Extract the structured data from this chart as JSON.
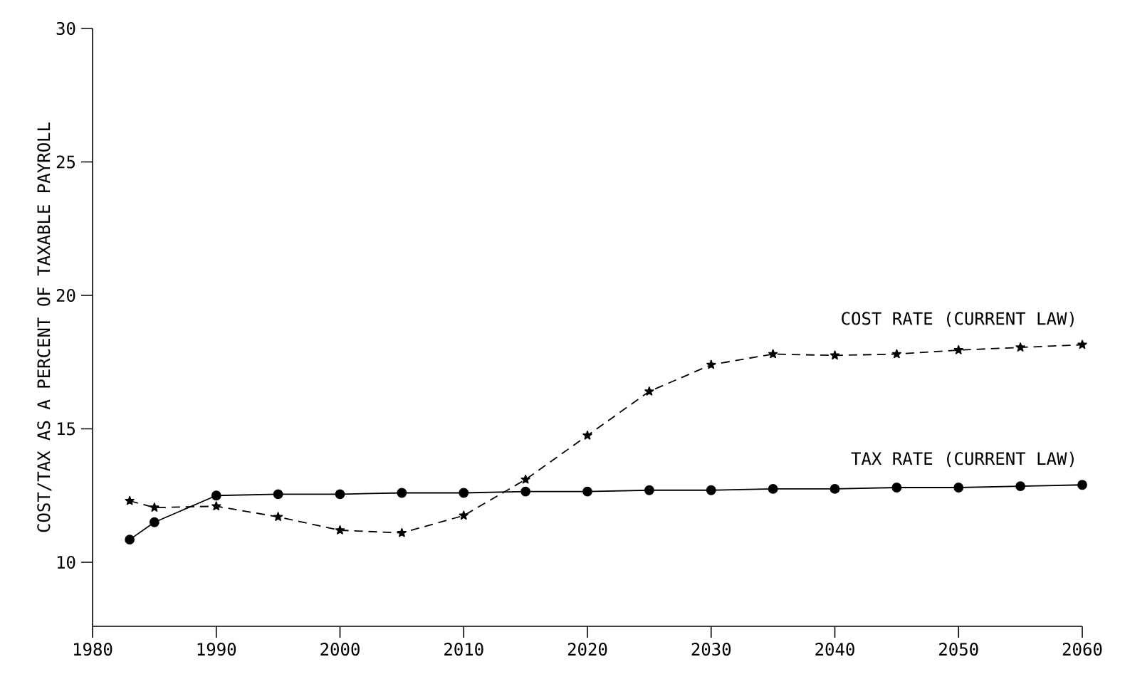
{
  "chart_data": {
    "type": "line",
    "ylabel": "COST/TAX AS A PERCENT OF TAXABLE PAYROLL",
    "x": [
      1983,
      1985,
      1990,
      1995,
      2000,
      2005,
      2010,
      2015,
      2020,
      2025,
      2030,
      2035,
      2040,
      2045,
      2050,
      2055,
      2060
    ],
    "series": [
      {
        "name": "COST RATE (CURRENT LAW)",
        "color": "#000000",
        "marker": "star",
        "line_style": "dashed",
        "values": [
          12.3,
          12.05,
          12.1,
          11.7,
          11.2,
          11.1,
          11.75,
          13.1,
          14.75,
          16.4,
          17.4,
          17.8,
          17.75,
          17.8,
          17.95,
          18.05,
          18.15
        ]
      },
      {
        "name": "TAX RATE (CURRENT LAW)",
        "color": "#000000",
        "marker": "circle",
        "line_style": "solid",
        "values": [
          10.85,
          11.5,
          12.5,
          12.55,
          12.55,
          12.6,
          12.6,
          12.65,
          12.65,
          12.7,
          12.7,
          12.75,
          12.75,
          12.8,
          12.8,
          12.85,
          12.9
        ]
      }
    ],
    "xlim": [
      1980,
      2060
    ],
    "ylim": [
      7.6,
      30
    ],
    "xticks": [
      1980,
      1990,
      2000,
      2010,
      2020,
      2030,
      2040,
      2050,
      2060
    ],
    "yticks": [
      10,
      15,
      20,
      25,
      30
    ],
    "grid": false,
    "legend": false
  }
}
